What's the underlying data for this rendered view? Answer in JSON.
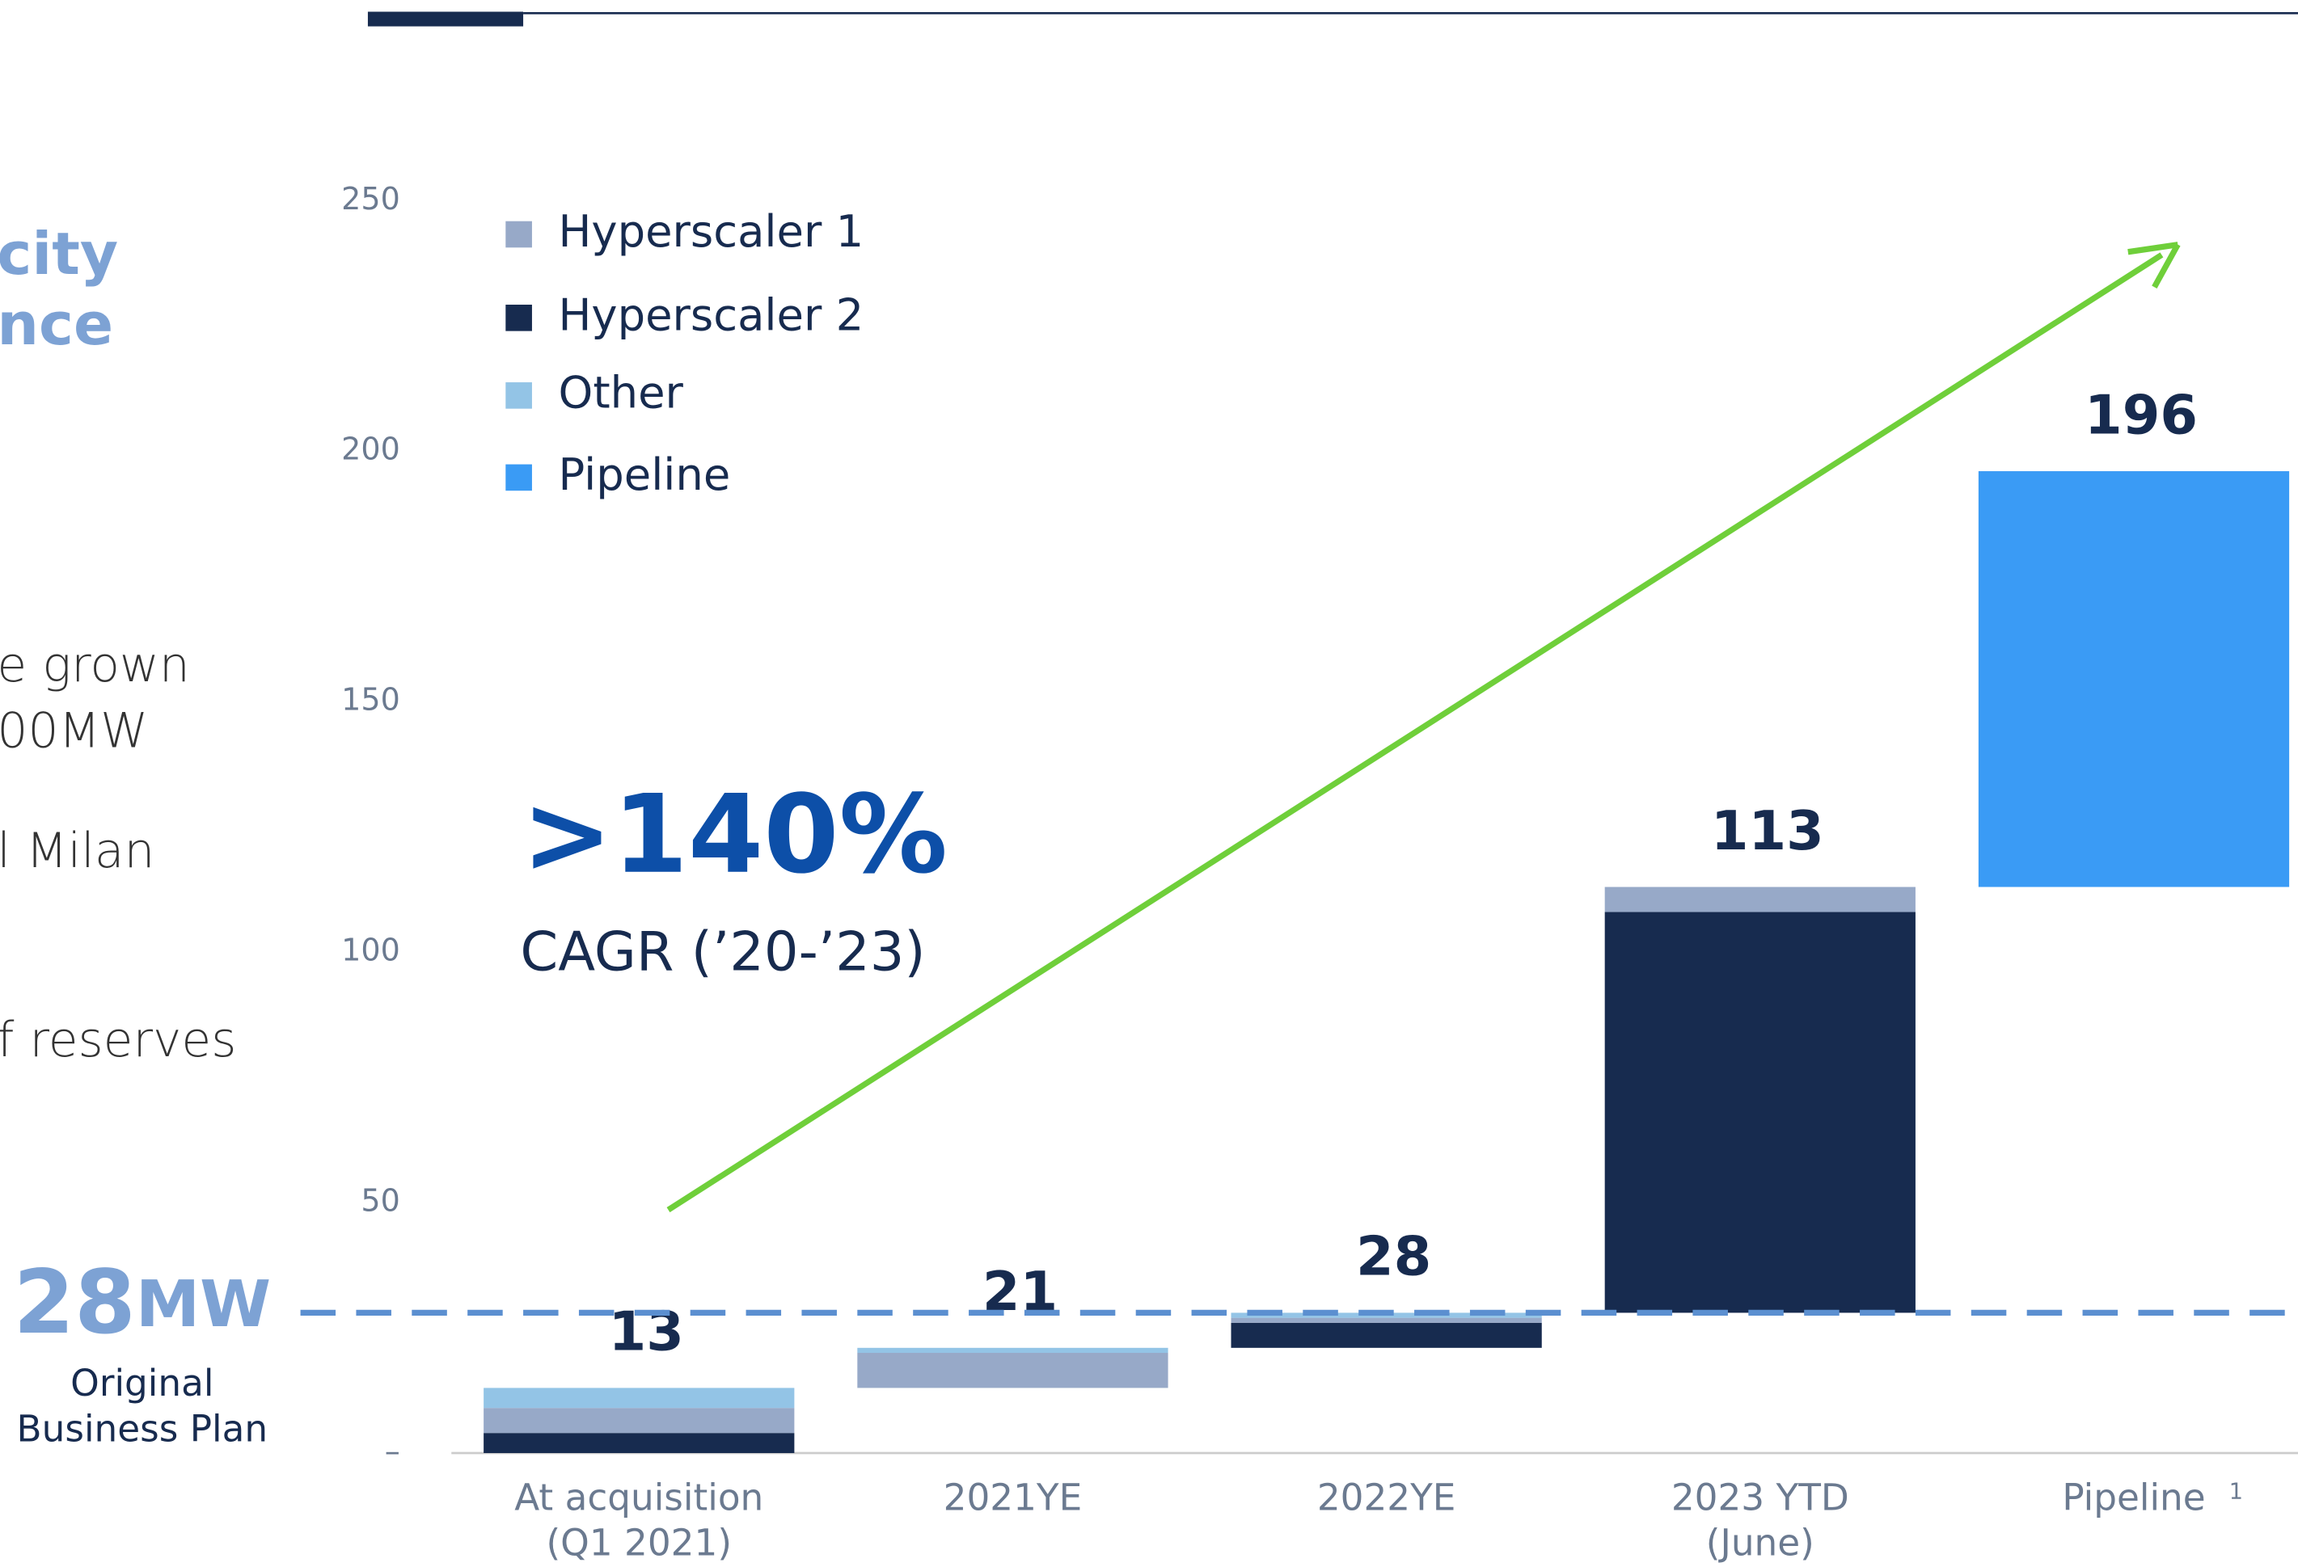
{
  "chart_data": {
    "type": "waterfall",
    "categories": [
      [
        "At acquisition",
        "(Q1 2021)"
      ],
      [
        "2021YE"
      ],
      [
        "2022YE"
      ],
      [
        "2023 YTD",
        "(June)"
      ],
      [
        "Pipeline"
      ]
    ],
    "footnote_marker": "1",
    "series": [
      {
        "name": "Hyperscaler 1",
        "color": "#97a9c8",
        "values": [
          5,
          7,
          1,
          5,
          null
        ]
      },
      {
        "name": "Hyperscaler 2",
        "color": "#172b4f",
        "values": [
          4,
          null,
          5,
          80,
          null
        ]
      },
      {
        "name": "Other",
        "color": "#93c4e6",
        "values": [
          4,
          1,
          1,
          null,
          null
        ]
      },
      {
        "name": "Pipeline",
        "color": "#3a9bf5",
        "values": [
          null,
          null,
          null,
          null,
          83
        ]
      }
    ],
    "totals": [
      13,
      21,
      28,
      113,
      196
    ],
    "ylim": [
      0,
      250
    ],
    "yticks": [
      {
        "value": 0,
        "label": "–"
      },
      50,
      100,
      150,
      200,
      250
    ],
    "reference_line": {
      "value": 28,
      "unit": "MW",
      "label": [
        "Original",
        "Business Plan"
      ]
    },
    "annotation": {
      "headline": ">140%",
      "text": "CAGR (’20-’23)"
    },
    "side_text": [
      "city",
      "nce",
      "e grown",
      "00MW",
      "l Milan",
      "f reserves"
    ]
  }
}
